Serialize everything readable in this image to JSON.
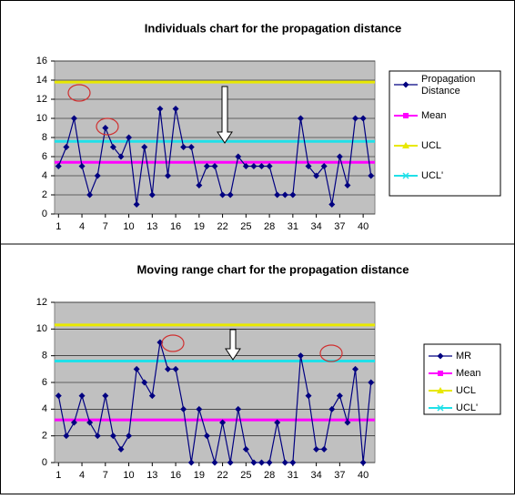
{
  "chart_data": [
    {
      "type": "line",
      "title": "Individuals chart for the propagation distance",
      "x": [
        1,
        2,
        3,
        4,
        5,
        6,
        7,
        8,
        9,
        10,
        11,
        12,
        13,
        14,
        15,
        16,
        17,
        18,
        19,
        20,
        21,
        22,
        23,
        24,
        25,
        26,
        27,
        28,
        29,
        30,
        31,
        32,
        33,
        34,
        35,
        36,
        37,
        38,
        39,
        40,
        41
      ],
      "xlim": [
        0.5,
        41.5
      ],
      "xticks": [
        1,
        4,
        7,
        10,
        13,
        16,
        19,
        22,
        25,
        28,
        31,
        34,
        37,
        40
      ],
      "ylim": [
        0,
        16
      ],
      "yticks": [
        0,
        2,
        4,
        6,
        8,
        10,
        12,
        14,
        16
      ],
      "series": [
        {
          "name": "Propagation Distance",
          "color": "#000080",
          "values": [
            5,
            7,
            10,
            5,
            2,
            4,
            9,
            7,
            6,
            8,
            1,
            7,
            2,
            11,
            4,
            11,
            7,
            7,
            3,
            5,
            5,
            2,
            2,
            6,
            5,
            5,
            5,
            5,
            2,
            2,
            2,
            10,
            5,
            4,
            5,
            1,
            6,
            3,
            10,
            10,
            4
          ]
        }
      ],
      "reference_lines": [
        {
          "name": "Mean",
          "color": "#ff00ff",
          "value": 5.4
        },
        {
          "name": "UCL",
          "color": "#e8e800",
          "value": 13.8
        },
        {
          "name": "UCL'",
          "color": "#20e0e8",
          "value": 7.6
        }
      ]
    },
    {
      "type": "line",
      "title": "Moving range chart for the propagation distance",
      "x": [
        1,
        2,
        3,
        4,
        5,
        6,
        7,
        8,
        9,
        10,
        11,
        12,
        13,
        14,
        15,
        16,
        17,
        18,
        19,
        20,
        21,
        22,
        23,
        24,
        25,
        26,
        27,
        28,
        29,
        30,
        31,
        32,
        33,
        34,
        35,
        36,
        37,
        38,
        39,
        40,
        41
      ],
      "xlim": [
        0.5,
        41.5
      ],
      "xticks": [
        1,
        4,
        7,
        10,
        13,
        16,
        19,
        22,
        25,
        28,
        31,
        34,
        37,
        40
      ],
      "ylim": [
        0,
        12
      ],
      "yticks": [
        0,
        2,
        4,
        6,
        8,
        10,
        12
      ],
      "series": [
        {
          "name": "MR",
          "color": "#000080",
          "values": [
            5,
            2,
            3,
            5,
            3,
            2,
            5,
            2,
            1,
            2,
            7,
            6,
            5,
            9,
            7,
            7,
            4,
            0,
            4,
            2,
            0,
            3,
            0,
            4,
            1,
            0,
            0,
            0,
            3,
            0,
            0,
            8,
            5,
            1,
            1,
            4,
            5,
            3,
            7,
            0,
            6
          ]
        }
      ],
      "reference_lines": [
        {
          "name": "Mean",
          "color": "#ff00ff",
          "value": 3.2
        },
        {
          "name": "UCL",
          "color": "#e8e800",
          "value": 10.3
        },
        {
          "name": "UCL'",
          "color": "#20e0e8",
          "value": 7.6
        }
      ]
    }
  ]
}
